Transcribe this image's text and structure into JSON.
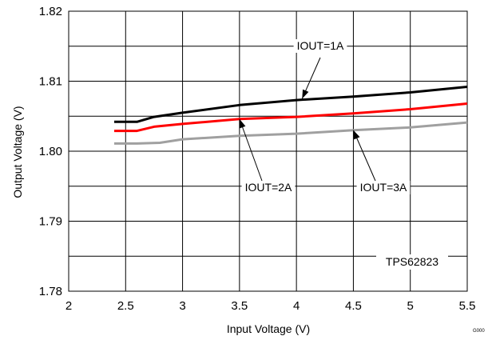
{
  "chart_data": {
    "type": "line",
    "xlabel": "Input Voltage (V)",
    "ylabel": "Output Voltage (V)",
    "xlim": [
      2,
      5.5
    ],
    "ylim": [
      1.78,
      1.82
    ],
    "x_ticks": [
      "2",
      "2.5",
      "3",
      "3.5",
      "4",
      "4.5",
      "5",
      "5.5"
    ],
    "y_ticks": [
      "1.78",
      "1.79",
      "1.80",
      "1.81",
      "1.82"
    ],
    "grid": true,
    "grid_x_step": 0.5,
    "grid_y_step": 0.005,
    "series": [
      {
        "name": "IOUT=1A",
        "color": "#000000",
        "x": [
          2.4,
          2.6,
          2.75,
          3.0,
          3.5,
          4.0,
          4.5,
          5.0,
          5.5
        ],
        "y": [
          1.8042,
          1.8042,
          1.8049,
          1.8055,
          1.8066,
          1.8073,
          1.8078,
          1.8084,
          1.8092
        ]
      },
      {
        "name": "IOUT=2A",
        "color": "#ff0000",
        "x": [
          2.4,
          2.6,
          2.75,
          3.0,
          3.5,
          4.0,
          4.5,
          5.0,
          5.5
        ],
        "y": [
          1.8029,
          1.8029,
          1.8035,
          1.8039,
          1.8046,
          1.8049,
          1.8054,
          1.806,
          1.8068
        ]
      },
      {
        "name": "IOUT=3A",
        "color": "#a0a0a0",
        "x": [
          2.4,
          2.6,
          2.8,
          3.0,
          3.5,
          4.0,
          4.5,
          5.0,
          5.5
        ],
        "y": [
          1.8011,
          1.8011,
          1.8012,
          1.8017,
          1.8022,
          1.8025,
          1.803,
          1.8034,
          1.8041
        ]
      }
    ],
    "annotations": [
      {
        "text": "IOUT=1A",
        "target_series": "IOUT=1A",
        "x": 4.05,
        "y": 1.8075
      },
      {
        "text": "IOUT=2A",
        "target_series": "IOUT=2A",
        "x": 3.5,
        "y": 1.8046
      },
      {
        "text": "IOUT=3A",
        "target_series": "IOUT=3A",
        "x": 4.5,
        "y": 1.803
      }
    ],
    "inset_label": "TPS62823",
    "figure_id": "G000"
  }
}
